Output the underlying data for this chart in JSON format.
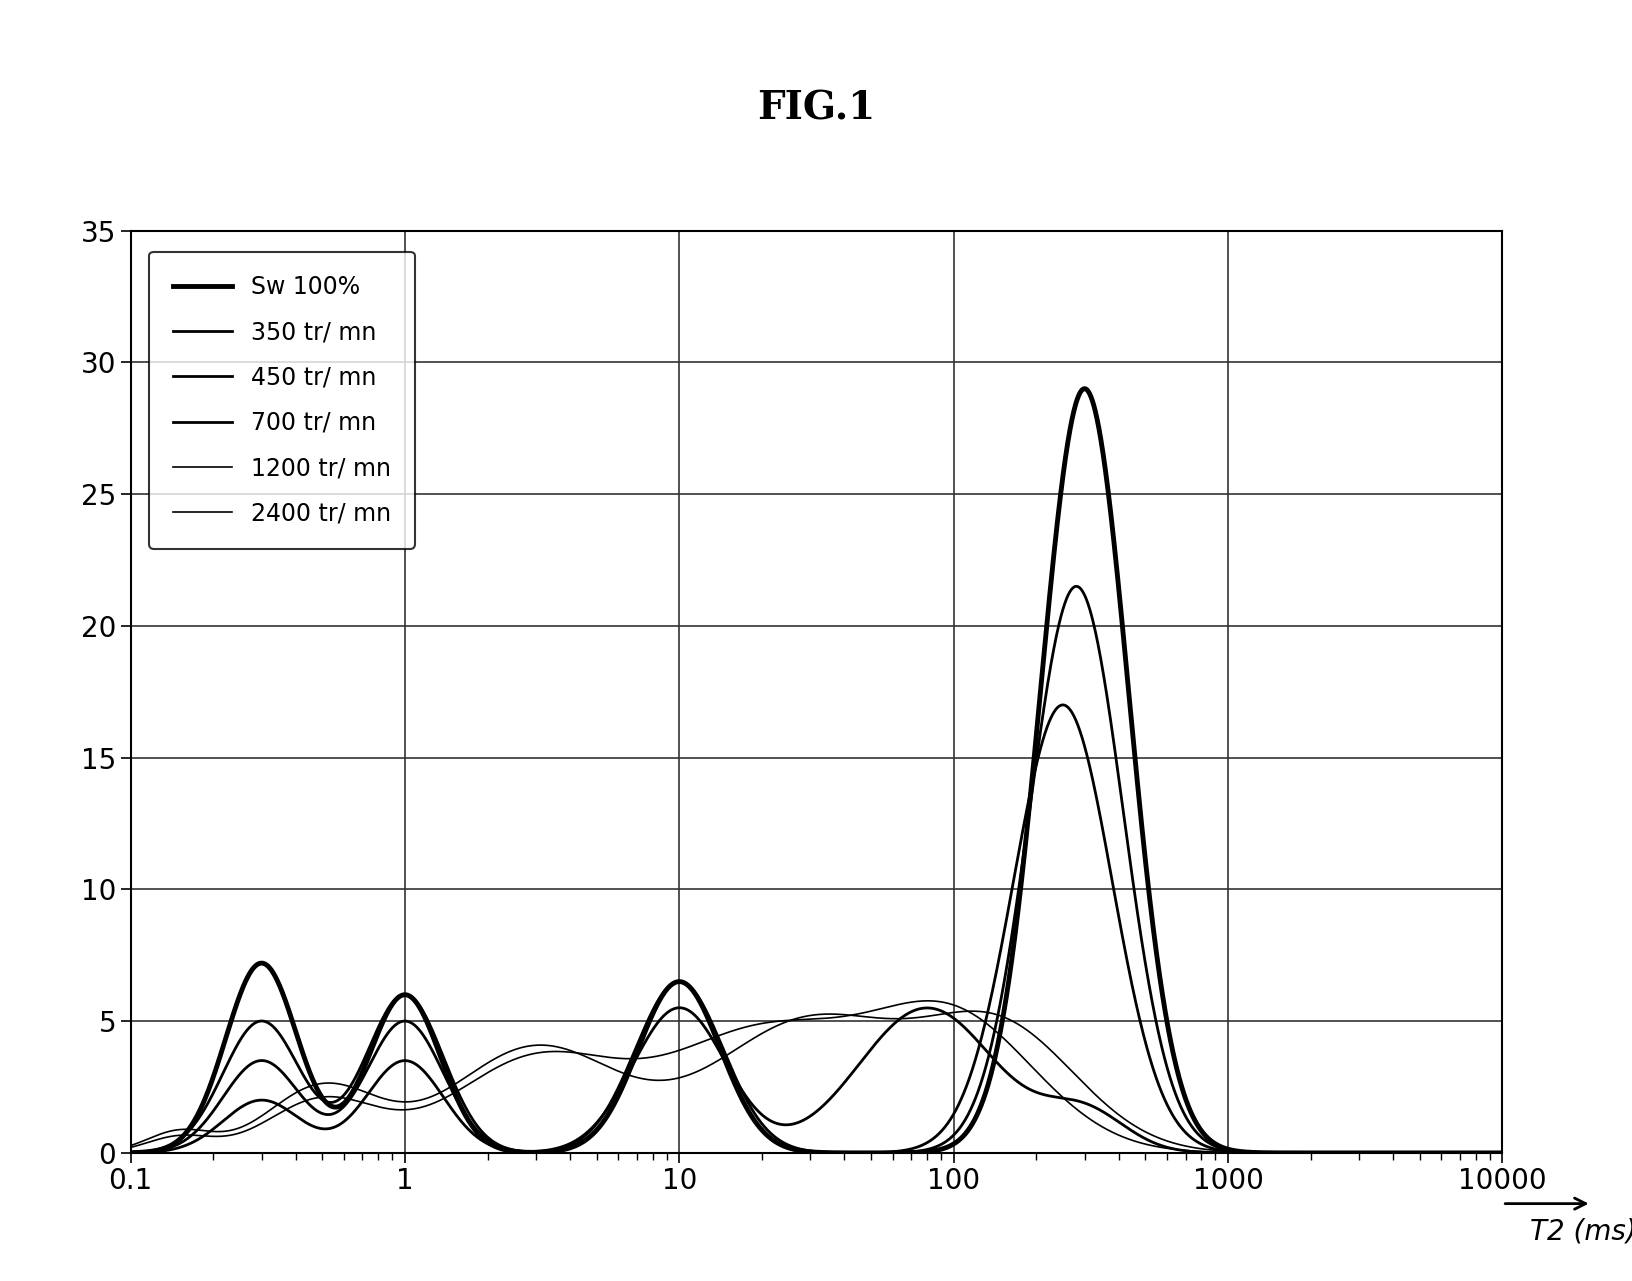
{
  "title": "FIG.1",
  "xlabel": "T2 (ms)",
  "ylim": [
    0,
    35
  ],
  "yticks": [
    0,
    5,
    10,
    15,
    20,
    25,
    30,
    35
  ],
  "xlog_min": 0.1,
  "xlog_max": 10000,
  "background_color": "#ffffff",
  "legend_entries": [
    "Sw 100%",
    "350 tr/ mn",
    "450 tr/ mn",
    "700 tr/ mn",
    "1200 tr/ mn",
    "2400 tr/ mn"
  ],
  "line_widths": [
    3.5,
    2.0,
    2.0,
    2.0,
    1.2,
    1.2
  ],
  "colors": [
    "#000000",
    "#000000",
    "#000000",
    "#000000",
    "#000000",
    "#000000"
  ]
}
